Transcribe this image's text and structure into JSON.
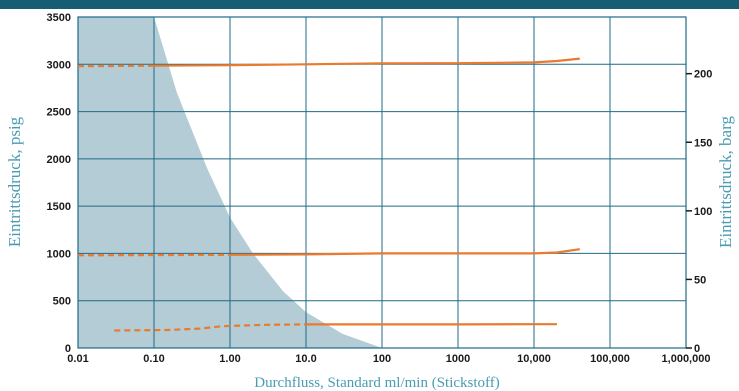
{
  "colors": {
    "band": "#165c72",
    "grid": "#1f6a85",
    "shade": "#b3ccd6",
    "curve": "#e97a2e",
    "title": "#4a9bb4",
    "tick": "#1a1a1a"
  },
  "chart_data": {
    "type": "line",
    "title": "",
    "xlabel": "Durchfluss, Standard ml/min (Stickstoff)",
    "ylabel_left": "Eintrittsdruck, psig",
    "ylabel_right": "Eintrittsdruck, barg",
    "x_scale": "log",
    "xlim": [
      0.01,
      1000000
    ],
    "ylim_left": [
      0,
      3500
    ],
    "ylim_right_barg": [
      0,
      241.3
    ],
    "grid": true,
    "legend": "none",
    "x_ticks": [
      {
        "value": 0.01,
        "label": "0.01"
      },
      {
        "value": 0.1,
        "label": "0.10"
      },
      {
        "value": 1,
        "label": "1.00"
      },
      {
        "value": 10,
        "label": "10.0"
      },
      {
        "value": 100,
        "label": "100"
      },
      {
        "value": 1000,
        "label": "1000"
      },
      {
        "value": 10000,
        "label": "10,000"
      },
      {
        "value": 100000,
        "label": "100,000"
      },
      {
        "value": 1000000,
        "label": "1,000,000"
      }
    ],
    "y_ticks_left": [
      0,
      500,
      1000,
      1500,
      2000,
      2500,
      3000,
      3500
    ],
    "y_ticks_right": [
      0,
      50,
      100,
      150,
      200
    ],
    "shaded_region": {
      "boundary": [
        {
          "x": 0.1,
          "y": 3500
        },
        {
          "x": 0.2,
          "y": 2700
        },
        {
          "x": 0.5,
          "y": 1900
        },
        {
          "x": 1,
          "y": 1380
        },
        {
          "x": 2,
          "y": 1000
        },
        {
          "x": 5,
          "y": 600
        },
        {
          "x": 10,
          "y": 380
        },
        {
          "x": 30,
          "y": 150
        },
        {
          "x": 100,
          "y": 0
        }
      ]
    },
    "series": [
      {
        "dashed": [
          {
            "x": 0.01,
            "y": 2980
          },
          {
            "x": 0.1,
            "y": 2985
          }
        ],
        "solid": [
          {
            "x": 0.1,
            "y": 2985
          },
          {
            "x": 1,
            "y": 2990
          },
          {
            "x": 10,
            "y": 3000
          },
          {
            "x": 100,
            "y": 3010
          },
          {
            "x": 1000,
            "y": 3012
          },
          {
            "x": 10000,
            "y": 3020
          },
          {
            "x": 20000,
            "y": 3035
          },
          {
            "x": 40000,
            "y": 3060
          }
        ]
      },
      {
        "dashed": [
          {
            "x": 0.01,
            "y": 980
          },
          {
            "x": 1,
            "y": 985
          }
        ],
        "solid": [
          {
            "x": 1,
            "y": 985
          },
          {
            "x": 10,
            "y": 990
          },
          {
            "x": 100,
            "y": 1000
          },
          {
            "x": 1000,
            "y": 1000
          },
          {
            "x": 10000,
            "y": 1000
          },
          {
            "x": 20000,
            "y": 1010
          },
          {
            "x": 40000,
            "y": 1045
          }
        ]
      },
      {
        "dashed": [
          {
            "x": 0.03,
            "y": 185
          },
          {
            "x": 0.15,
            "y": 190
          },
          {
            "x": 0.4,
            "y": 205
          },
          {
            "x": 0.8,
            "y": 230
          },
          {
            "x": 3,
            "y": 245
          },
          {
            "x": 10,
            "y": 250
          }
        ],
        "solid": [
          {
            "x": 10,
            "y": 250
          },
          {
            "x": 100,
            "y": 250
          },
          {
            "x": 1000,
            "y": 250
          },
          {
            "x": 10000,
            "y": 252
          },
          {
            "x": 20000,
            "y": 252
          }
        ]
      }
    ]
  }
}
